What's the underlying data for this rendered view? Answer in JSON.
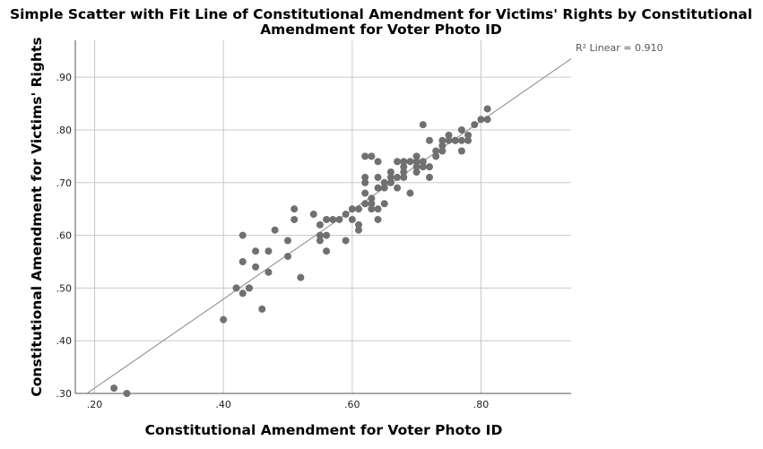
{
  "chart_data": {
    "type": "scatter",
    "title_line1": "Simple Scatter with Fit Line of Constitutional Amendment for Victims' Rights by Constitutional",
    "title_line2": "Amendment for Voter Photo ID",
    "xlabel": "Constitutional Amendment for Voter Photo ID",
    "ylabel": "Constitutional Amendment for Victims' Rights",
    "xlim": [
      0.17,
      0.94
    ],
    "ylim": [
      0.3,
      0.97
    ],
    "xticks": [
      0.2,
      0.4,
      0.6,
      0.8
    ],
    "xtick_labels": [
      ".20",
      ".40",
      ".60",
      ".80"
    ],
    "yticks": [
      0.3,
      0.4,
      0.5,
      0.6,
      0.7,
      0.8,
      0.9
    ],
    "ytick_labels": [
      ".30",
      ".40",
      ".50",
      ".60",
      ".70",
      ".80",
      ".90"
    ],
    "grid": true,
    "fit_line": {
      "label": "R² Linear = 0.910",
      "x": [
        0.188,
        0.94
      ],
      "y": [
        0.3,
        0.935
      ]
    },
    "colors": {
      "points": "#707070",
      "fit": "#888888",
      "grid": "#c8c8c8",
      "axis": "#555555"
    },
    "x": [
      0.23,
      0.25,
      0.4,
      0.42,
      0.43,
      0.43,
      0.43,
      0.44,
      0.44,
      0.45,
      0.45,
      0.46,
      0.47,
      0.47,
      0.48,
      0.5,
      0.5,
      0.51,
      0.51,
      0.52,
      0.54,
      0.55,
      0.55,
      0.55,
      0.56,
      0.56,
      0.56,
      0.57,
      0.58,
      0.59,
      0.59,
      0.6,
      0.6,
      0.61,
      0.61,
      0.61,
      0.62,
      0.62,
      0.62,
      0.62,
      0.62,
      0.63,
      0.63,
      0.63,
      0.63,
      0.64,
      0.64,
      0.64,
      0.64,
      0.64,
      0.65,
      0.65,
      0.65,
      0.66,
      0.66,
      0.66,
      0.67,
      0.67,
      0.67,
      0.68,
      0.68,
      0.68,
      0.68,
      0.69,
      0.69,
      0.7,
      0.7,
      0.7,
      0.7,
      0.71,
      0.71,
      0.71,
      0.72,
      0.72,
      0.72,
      0.73,
      0.73,
      0.74,
      0.74,
      0.74,
      0.75,
      0.75,
      0.76,
      0.76,
      0.77,
      0.77,
      0.77,
      0.78,
      0.78,
      0.79,
      0.8,
      0.81,
      0.81
    ],
    "y": [
      0.31,
      0.3,
      0.44,
      0.5,
      0.6,
      0.55,
      0.49,
      0.5,
      0.5,
      0.57,
      0.54,
      0.46,
      0.57,
      0.53,
      0.61,
      0.59,
      0.56,
      0.65,
      0.63,
      0.52,
      0.64,
      0.62,
      0.6,
      0.59,
      0.63,
      0.6,
      0.57,
      0.63,
      0.63,
      0.64,
      0.59,
      0.65,
      0.63,
      0.65,
      0.62,
      0.61,
      0.75,
      0.71,
      0.7,
      0.68,
      0.66,
      0.75,
      0.67,
      0.66,
      0.65,
      0.74,
      0.71,
      0.69,
      0.65,
      0.63,
      0.7,
      0.69,
      0.66,
      0.72,
      0.71,
      0.7,
      0.74,
      0.71,
      0.69,
      0.74,
      0.73,
      0.72,
      0.71,
      0.74,
      0.68,
      0.75,
      0.74,
      0.73,
      0.72,
      0.81,
      0.74,
      0.73,
      0.78,
      0.73,
      0.71,
      0.76,
      0.75,
      0.78,
      0.77,
      0.76,
      0.79,
      0.78,
      0.78,
      0.78,
      0.8,
      0.78,
      0.76,
      0.79,
      0.78,
      0.81,
      0.82,
      0.84,
      0.82
    ]
  }
}
